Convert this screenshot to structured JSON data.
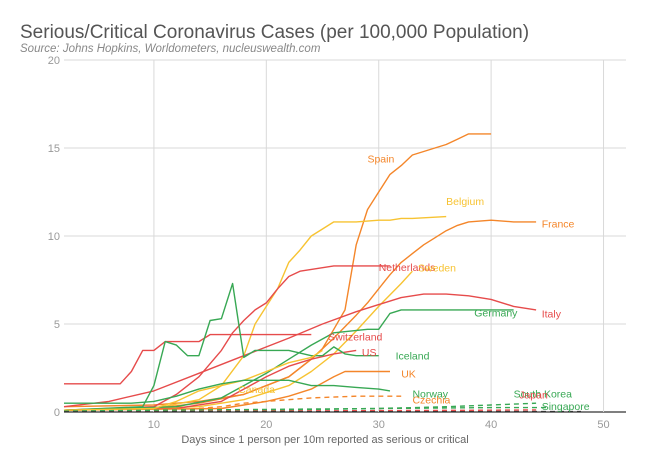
{
  "title": "Serious/Critical Coronavirus Cases (per 100,000 Population)",
  "subtitle": "Source: Johns Hopkins, Worldometers, nucleuswealth.com",
  "chart_data": {
    "type": "line",
    "title": "Serious/Critical Coronavirus Cases (per 100,000 Population)",
    "xlabel": "Days since 1 person per 10m reported as serious or critical",
    "ylabel": "",
    "xlim": [
      2,
      52
    ],
    "ylim": [
      0,
      20
    ],
    "xticks": [
      10,
      20,
      30,
      40,
      50
    ],
    "yticks": [
      0,
      5,
      10,
      15,
      20
    ],
    "grid": true,
    "legend": "labels at line ends",
    "series": [
      {
        "name": "Spain",
        "color": "#f4862a",
        "dash": false,
        "label_at": [
          29,
          14.4
        ],
        "points": [
          [
            2,
            0.3
          ],
          [
            10,
            0.4
          ],
          [
            14,
            0.6
          ],
          [
            18,
            1.0
          ],
          [
            22,
            2.0
          ],
          [
            24,
            3.0
          ],
          [
            25,
            3.6
          ],
          [
            26,
            4.7
          ],
          [
            27,
            5.8
          ],
          [
            28,
            9.5
          ],
          [
            29,
            11.5
          ],
          [
            30,
            12.5
          ],
          [
            31,
            13.5
          ],
          [
            32,
            14.0
          ],
          [
            33,
            14.6
          ],
          [
            34,
            14.8
          ],
          [
            35,
            15.0
          ],
          [
            36,
            15.2
          ],
          [
            37,
            15.5
          ],
          [
            38,
            15.8
          ],
          [
            40,
            15.8
          ]
        ]
      },
      {
        "name": "Belgium",
        "color": "#f7c332",
        "dash": false,
        "label_at": [
          36,
          12.0
        ],
        "points": [
          [
            2,
            0.1
          ],
          [
            10,
            0.2
          ],
          [
            14,
            0.7
          ],
          [
            16,
            1.5
          ],
          [
            18,
            3.2
          ],
          [
            19,
            5.0
          ],
          [
            20,
            6.0
          ],
          [
            21,
            7.0
          ],
          [
            22,
            8.5
          ],
          [
            23,
            9.2
          ],
          [
            24,
            10.0
          ],
          [
            25,
            10.4
          ],
          [
            26,
            10.8
          ],
          [
            27,
            10.8
          ],
          [
            28,
            10.8
          ],
          [
            30,
            10.9
          ],
          [
            31,
            10.9
          ],
          [
            32,
            11.0
          ],
          [
            33,
            11.0
          ],
          [
            36,
            11.1
          ]
        ]
      },
      {
        "name": "France",
        "color": "#f4862a",
        "dash": false,
        "label_at": [
          44.5,
          10.7
        ],
        "points": [
          [
            2,
            0.1
          ],
          [
            10,
            0.2
          ],
          [
            14,
            0.5
          ],
          [
            18,
            1.0
          ],
          [
            22,
            2.0
          ],
          [
            24,
            3.0
          ],
          [
            26,
            4.2
          ],
          [
            28,
            5.5
          ],
          [
            29,
            6.2
          ],
          [
            30,
            7.0
          ],
          [
            31,
            7.8
          ],
          [
            32,
            8.5
          ],
          [
            33,
            9.0
          ],
          [
            34,
            9.5
          ],
          [
            35,
            9.9
          ],
          [
            36,
            10.3
          ],
          [
            37,
            10.6
          ],
          [
            38,
            10.8
          ],
          [
            40,
            10.9
          ],
          [
            42,
            10.8
          ],
          [
            44,
            10.8
          ]
        ]
      },
      {
        "name": "Netherlands",
        "color": "#e64b4b",
        "dash": false,
        "label_at": [
          30,
          8.25
        ],
        "points": [
          [
            2,
            0.1
          ],
          [
            10,
            0.3
          ],
          [
            12,
            1.0
          ],
          [
            14,
            2.0
          ],
          [
            16,
            3.5
          ],
          [
            17,
            4.5
          ],
          [
            18,
            5.2
          ],
          [
            19,
            5.8
          ],
          [
            20,
            6.2
          ],
          [
            21,
            7.0
          ],
          [
            22,
            7.7
          ],
          [
            23,
            8.0
          ],
          [
            24,
            8.1
          ],
          [
            25,
            8.2
          ],
          [
            26,
            8.3
          ],
          [
            27,
            8.3
          ],
          [
            31,
            8.3
          ]
        ]
      },
      {
        "name": "Sweden",
        "color": "#f7c332",
        "dash": false,
        "label_at": [
          33.5,
          8.2
        ],
        "points": [
          [
            2,
            0.1
          ],
          [
            14,
            0.3
          ],
          [
            18,
            0.7
          ],
          [
            22,
            1.5
          ],
          [
            24,
            2.3
          ],
          [
            26,
            3.3
          ],
          [
            28,
            4.6
          ],
          [
            30,
            6.0
          ],
          [
            32,
            7.3
          ],
          [
            33,
            8.0
          ]
        ]
      },
      {
        "name": "Italy",
        "color": "#e64b4b",
        "dash": false,
        "label_at": [
          44.5,
          5.6
        ],
        "points": [
          [
            2,
            0.3
          ],
          [
            6,
            0.6
          ],
          [
            10,
            1.2
          ],
          [
            14,
            2.2
          ],
          [
            18,
            3.2
          ],
          [
            22,
            4.2
          ],
          [
            25,
            5.0
          ],
          [
            28,
            5.7
          ],
          [
            30,
            6.1
          ],
          [
            32,
            6.5
          ],
          [
            34,
            6.7
          ],
          [
            36,
            6.7
          ],
          [
            38,
            6.6
          ],
          [
            40,
            6.4
          ],
          [
            42,
            6.0
          ],
          [
            44,
            5.8
          ]
        ]
      },
      {
        "name": "Germany",
        "color": "#38a854",
        "dash": false,
        "label_at": [
          38.5,
          5.65
        ],
        "points": [
          [
            2,
            0.1
          ],
          [
            12,
            0.3
          ],
          [
            16,
            0.8
          ],
          [
            18,
            1.5
          ],
          [
            20,
            2.2
          ],
          [
            22,
            3.0
          ],
          [
            24,
            3.8
          ],
          [
            26,
            4.5
          ],
          [
            29,
            4.7
          ],
          [
            30,
            4.7
          ],
          [
            31,
            5.6
          ],
          [
            32,
            5.8
          ],
          [
            34,
            5.8
          ],
          [
            36,
            5.8
          ],
          [
            38,
            5.8
          ],
          [
            42,
            5.8
          ]
        ]
      },
      {
        "name": "Switzerland",
        "color": "#e64b4b",
        "dash": false,
        "label_at": [
          25.5,
          4.3
        ],
        "points": [
          [
            2,
            1.6
          ],
          [
            7,
            1.6
          ],
          [
            8,
            2.3
          ],
          [
            9,
            3.5
          ],
          [
            10,
            3.5
          ],
          [
            11,
            4.0
          ],
          [
            14,
            4.0
          ],
          [
            15,
            4.4
          ],
          [
            24,
            4.4
          ]
        ]
      },
      {
        "name": "US",
        "color": "#e64b4b",
        "dash": false,
        "label_at": [
          28.5,
          3.4
        ],
        "points": [
          [
            2,
            0.1
          ],
          [
            12,
            0.2
          ],
          [
            16,
            0.6
          ],
          [
            18,
            1.3
          ],
          [
            20,
            2.0
          ],
          [
            22,
            2.6
          ],
          [
            24,
            3.0
          ],
          [
            26,
            3.3
          ],
          [
            28,
            3.5
          ]
        ]
      },
      {
        "name": "Iceland",
        "color": "#38a854",
        "dash": false,
        "label_at": [
          31.5,
          3.2
        ],
        "points": [
          [
            2,
            0.1
          ],
          [
            9,
            0.3
          ],
          [
            10,
            1.5
          ],
          [
            11,
            4.0
          ],
          [
            12,
            3.8
          ],
          [
            13,
            3.2
          ],
          [
            14,
            3.2
          ],
          [
            15,
            5.2
          ],
          [
            16,
            5.3
          ],
          [
            17,
            7.3
          ],
          [
            18,
            3.1
          ],
          [
            19,
            3.5
          ],
          [
            20,
            3.5
          ],
          [
            22,
            3.5
          ],
          [
            24,
            3.2
          ],
          [
            25,
            3.2
          ],
          [
            26,
            3.7
          ],
          [
            27,
            3.3
          ],
          [
            28,
            3.2
          ],
          [
            30,
            3.2
          ]
        ]
      },
      {
        "name": "UK",
        "color": "#f4862a",
        "dash": false,
        "label_at": [
          32,
          2.2
        ],
        "points": [
          [
            2,
            0.1
          ],
          [
            16,
            0.2
          ],
          [
            18,
            0.4
          ],
          [
            20,
            0.6
          ],
          [
            22,
            0.9
          ],
          [
            24,
            1.3
          ],
          [
            26,
            2.0
          ],
          [
            27,
            2.3
          ],
          [
            30,
            2.3
          ],
          [
            31,
            2.3
          ]
        ]
      },
      {
        "name": "Canada",
        "color": "#f7c332",
        "dash": false,
        "label_at": [
          17.5,
          1.3
        ],
        "points": [
          [
            2,
            0.1
          ],
          [
            10,
            0.2
          ],
          [
            12,
            0.6
          ],
          [
            14,
            1.2
          ],
          [
            16,
            1.5
          ],
          [
            18,
            1.8
          ],
          [
            20,
            2.3
          ],
          [
            22,
            2.8
          ],
          [
            24,
            3.1
          ],
          [
            25,
            3.5
          ]
        ]
      },
      {
        "name": "Norway",
        "color": "#38a854",
        "dash": false,
        "label_at": [
          33,
          1.05
        ],
        "points": [
          [
            2,
            0.5
          ],
          [
            8,
            0.5
          ],
          [
            10,
            0.6
          ],
          [
            12,
            0.9
          ],
          [
            14,
            1.3
          ],
          [
            16,
            1.6
          ],
          [
            18,
            1.8
          ],
          [
            20,
            1.8
          ],
          [
            22,
            1.8
          ],
          [
            24,
            1.5
          ],
          [
            26,
            1.5
          ],
          [
            28,
            1.4
          ],
          [
            30,
            1.3
          ],
          [
            31,
            1.2
          ]
        ]
      },
      {
        "name": "Czechia",
        "color": "#f4862a",
        "dash": true,
        "label_at": [
          33,
          0.7
        ],
        "points": [
          [
            2,
            0.05
          ],
          [
            12,
            0.1
          ],
          [
            16,
            0.3
          ],
          [
            18,
            0.5
          ],
          [
            20,
            0.6
          ],
          [
            24,
            0.8
          ],
          [
            28,
            0.9
          ],
          [
            32,
            0.9
          ]
        ]
      },
      {
        "name": "South Korea",
        "color": "#38a854",
        "dash": true,
        "label_at": [
          42,
          1.05
        ],
        "points": [
          [
            2,
            0.02
          ],
          [
            20,
            0.1
          ],
          [
            30,
            0.2
          ],
          [
            36,
            0.3
          ],
          [
            40,
            0.4
          ],
          [
            44,
            0.5
          ]
        ]
      },
      {
        "name": "Japan",
        "color": "#e64b4b",
        "dash": true,
        "label_at": [
          42.5,
          1.0
        ],
        "points": [
          [
            2,
            0.02
          ],
          [
            20,
            0.05
          ],
          [
            30,
            0.08
          ],
          [
            40,
            0.1
          ],
          [
            44,
            0.12
          ]
        ]
      },
      {
        "name": "Singapore",
        "color": "#38a854",
        "dash": true,
        "label_at": [
          44.5,
          0.35
        ],
        "points": [
          [
            2,
            0.05
          ],
          [
            10,
            0.1
          ],
          [
            20,
            0.15
          ],
          [
            30,
            0.2
          ],
          [
            40,
            0.25
          ],
          [
            45,
            0.25
          ]
        ]
      },
      {
        "name": "",
        "color": "#333333",
        "dash": true,
        "label_at": null,
        "points": [
          [
            2,
            0.01
          ],
          [
            48,
            0.02
          ]
        ]
      }
    ]
  }
}
